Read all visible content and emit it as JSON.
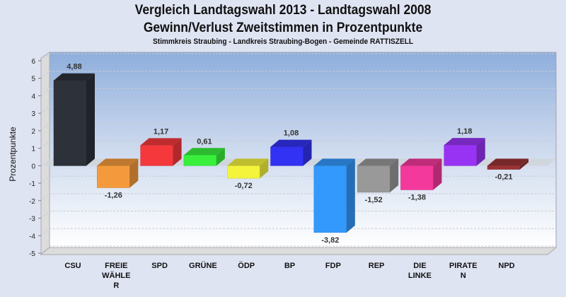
{
  "chart_data": {
    "type": "bar",
    "title": "Vergleich Landtagswahl 2013 - Landtagswahl 2008",
    "subtitle": "Gewinn/Verlust Zweitstimmen in Prozentpunkte",
    "subsubtitle": "Stimmkreis Straubing - Landkreis Straubing-Bogen - Gemeinde RATTISZELL",
    "xlabel": "",
    "ylabel": "Prozentpunkte",
    "ylim": [
      -5,
      6
    ],
    "yticks": [
      "6",
      "5",
      "4",
      "3",
      "2",
      "1",
      "0",
      "-1",
      "-2",
      "-3",
      "-4",
      "-5"
    ],
    "grid": true,
    "categories": [
      {
        "lines": [
          "CSU"
        ]
      },
      {
        "lines": [
          "FREIE",
          "WÄHLE",
          "R"
        ]
      },
      {
        "lines": [
          "SPD"
        ]
      },
      {
        "lines": [
          "GRÜNE"
        ]
      },
      {
        "lines": [
          "ÖDP"
        ]
      },
      {
        "lines": [
          "BP"
        ]
      },
      {
        "lines": [
          "FDP"
        ]
      },
      {
        "lines": [
          "REP"
        ]
      },
      {
        "lines": [
          "DIE",
          "LINKE"
        ]
      },
      {
        "lines": [
          "PIRATE",
          "N"
        ]
      },
      {
        "lines": [
          "NPD"
        ]
      }
    ],
    "values": [
      4.88,
      -1.26,
      1.17,
      0.61,
      -0.72,
      1.08,
      -3.82,
      -1.52,
      -1.38,
      1.18,
      -0.21
    ],
    "labels": [
      "4,88",
      "-1,26",
      "1,17",
      "0,61",
      "-0,72",
      "1,08",
      "-3,82",
      "-1,52",
      "-1,38",
      "1,18",
      "-0,21"
    ],
    "colors": [
      "#2d3139",
      "#f59a3c",
      "#f4383c",
      "#38f03c",
      "#f4f43c",
      "#3232f4",
      "#3399fc",
      "#999999",
      "#f4399c",
      "#9933f4",
      "#9b3336"
    ]
  }
}
